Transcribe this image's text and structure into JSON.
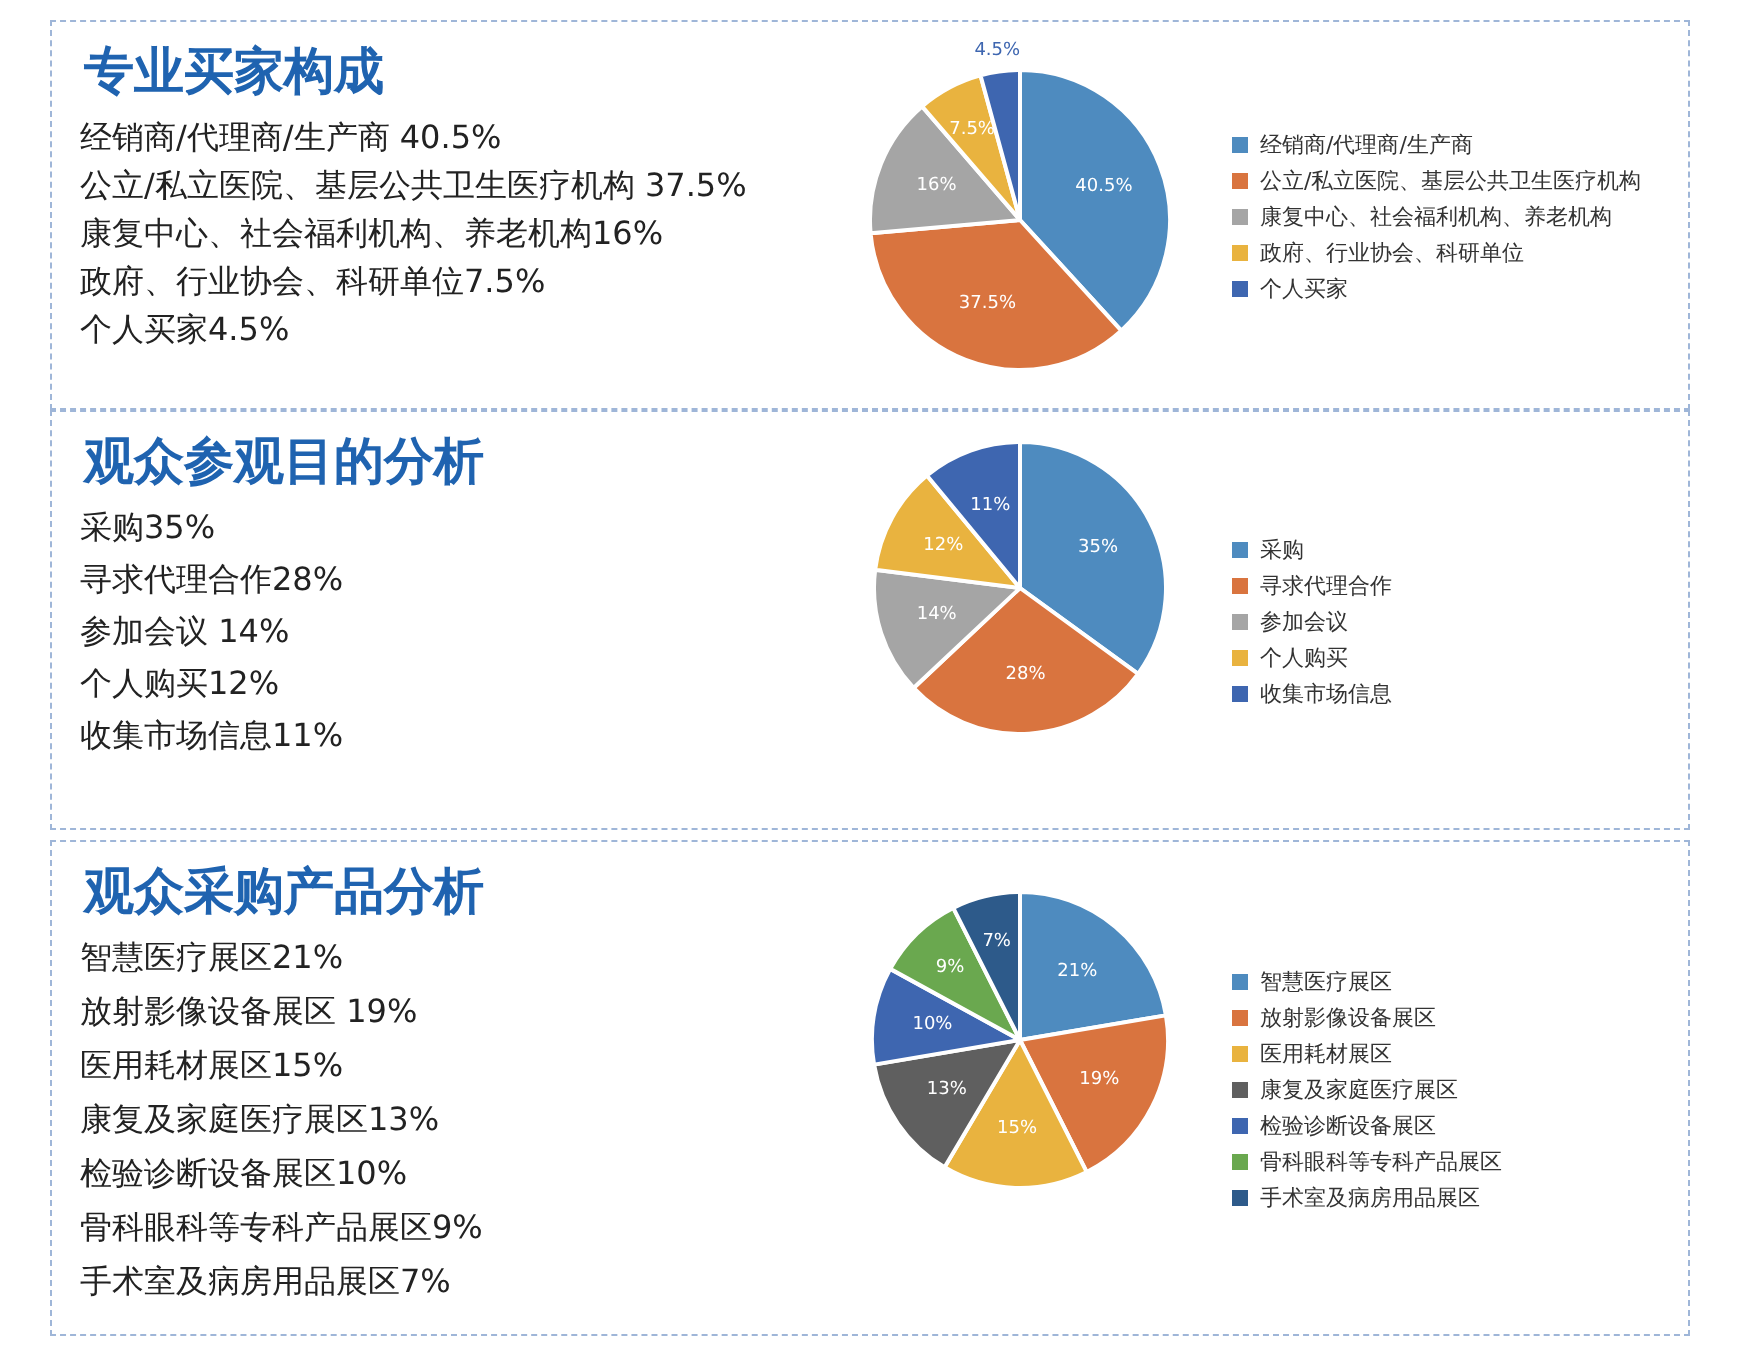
{
  "chart_data": [
    {
      "type": "pie",
      "title": "专业买家构成",
      "annotations": [
        "经销商/代理商/生产商 40.5%",
        "公立/私立医院、基层公共卫生医疗机构 37.5%",
        "康复中心、社会福利机构、养老机构16%",
        "政府、行业协会、科研单位7.5%",
        "个人买家4.5%"
      ],
      "categories": [
        "经销商/代理商/生产商",
        "公立/私立医院、基层公共卫生医疗机构",
        "康复中心、社会福利机构、养老机构",
        "政府、行业协会、科研单位",
        "个人买家"
      ],
      "values": [
        40.5,
        37.5,
        16,
        7.5,
        4.5
      ],
      "value_labels": [
        "40.5%",
        "37.5%",
        "16%",
        "7.5%",
        "4.5%"
      ],
      "colors": [
        "#4e8bbf",
        "#d9743f",
        "#a5a5a5",
        "#e9b33f",
        "#3e66b0"
      ],
      "legend": "right"
    },
    {
      "type": "pie",
      "title": "观众参观目的分析",
      "annotations": [
        "采购35%",
        "寻求代理合作28%",
        "参加会议 14%",
        "个人购买12%",
        "收集市场信息11%"
      ],
      "categories": [
        "采购",
        "寻求代理合作",
        "参加会议",
        "个人购买",
        "收集市场信息"
      ],
      "values": [
        35,
        28,
        14,
        12,
        11
      ],
      "value_labels": [
        "35%",
        "28%",
        "14%",
        "12%",
        "11%"
      ],
      "colors": [
        "#4e8bbf",
        "#d9743f",
        "#a5a5a5",
        "#e9b33f",
        "#3e66b0"
      ],
      "legend": "right"
    },
    {
      "type": "pie",
      "title": "观众采购产品分析",
      "annotations": [
        "智慧医疗展区21%",
        "放射影像设备展区 19%",
        "医用耗材展区15%",
        "康复及家庭医疗展区13%",
        "检验诊断设备展区10%",
        "骨科眼科等专科产品展区9%",
        "手术室及病房用品展区7%"
      ],
      "categories": [
        "智慧医疗展区",
        "放射影像设备展区",
        "医用耗材展区",
        "康复及家庭医疗展区",
        "检验诊断设备展区",
        "骨科眼科等专科产品展区",
        "手术室及病房用品展区"
      ],
      "values": [
        21,
        19,
        15,
        13,
        10,
        9,
        7
      ],
      "value_labels": [
        "21%",
        "19%",
        "15%",
        "13%",
        "10%",
        "9%",
        "7%"
      ],
      "colors": [
        "#4e8bbf",
        "#d9743f",
        "#e9b33f",
        "#5f5f5f",
        "#3e66b0",
        "#6aa84f",
        "#2d5a8a"
      ],
      "legend": "right"
    }
  ]
}
